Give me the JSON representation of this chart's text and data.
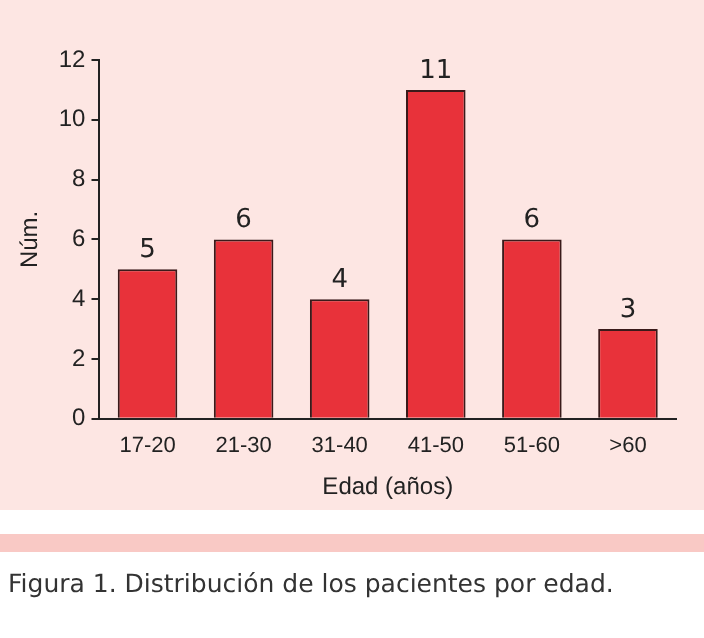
{
  "chart_data": {
    "type": "bar",
    "categories": [
      "17-20",
      "21-30",
      "31-40",
      "41-50",
      "51-60",
      ">60"
    ],
    "values": [
      5,
      6,
      4,
      11,
      6,
      3
    ],
    "color": "#e8323a",
    "ylim": [
      0,
      12
    ],
    "yticks": [
      0,
      2,
      4,
      6,
      8,
      10,
      12
    ],
    "grid": false,
    "data_labels": true,
    "xlabel": "Edad (años)",
    "ylabel": "Núm.",
    "annotations": [
      "Figura 1. Distribución de los pacientes por edad."
    ]
  }
}
